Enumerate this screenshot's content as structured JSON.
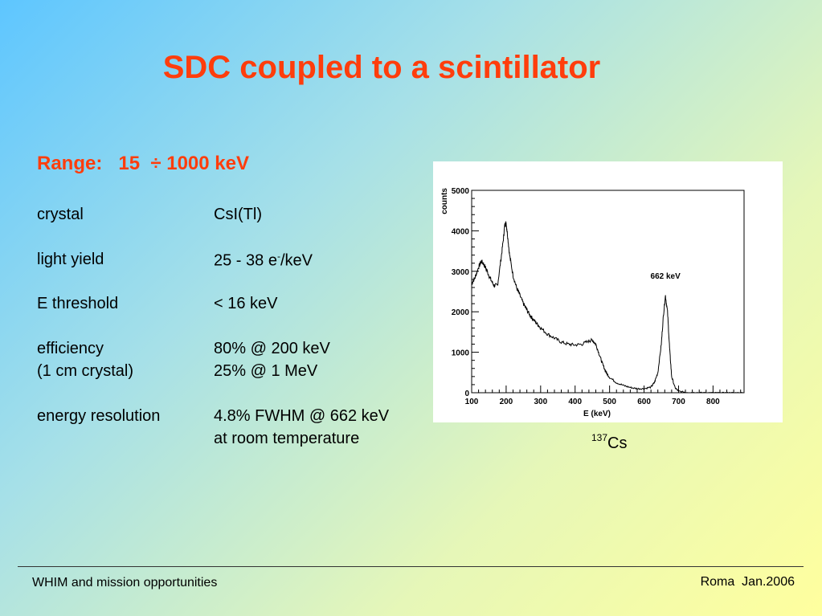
{
  "slide": {
    "title": "SDC coupled to a scintillator",
    "range": "Range:   15  ÷ 1000 keV",
    "specs": [
      {
        "label": "crystal",
        "value": "CsI(Tl)"
      },
      {
        "label": "light yield",
        "value_pre": "25 - 38 e",
        "value_sup": "-",
        "value_post": "/keV"
      },
      {
        "label": "E threshold",
        "value": "< 16 keV"
      },
      {
        "label": "efficiency",
        "value": "80% @ 200 keV"
      },
      {
        "label": "(1 cm crystal)",
        "value": "25% @ 1 MeV"
      },
      {
        "label": "energy resolution",
        "value": "4.8% FWHM @ 662 keV"
      },
      {
        "label": "",
        "value": "at room temperature"
      }
    ],
    "isotope_mass": "137",
    "isotope_symbol": "Cs"
  },
  "footer": {
    "left": "WHIM and mission opportunities",
    "right": "Roma  Jan.2006"
  },
  "chart_data": {
    "type": "line",
    "xlabel": "E (keV)",
    "ylabel": "counts",
    "xlim": [
      100,
      890
    ],
    "ylim": [
      0,
      5000
    ],
    "xticks": [
      100,
      200,
      300,
      400,
      500,
      600,
      700,
      800
    ],
    "yticks": [
      0,
      1000,
      2000,
      3000,
      4000,
      5000
    ],
    "annotation": {
      "text": "662 keV",
      "x": 662,
      "y": 2700
    },
    "series": [
      {
        "x": [
          100,
          110,
          120,
          128,
          135,
          145,
          155,
          165,
          175,
          185,
          192,
          196,
          200,
          204,
          210,
          220,
          230,
          240,
          250,
          260,
          270,
          280,
          290,
          300,
          320,
          340,
          360,
          380,
          400,
          420,
          440,
          450,
          460,
          470,
          480,
          490,
          500,
          520,
          540,
          560,
          580,
          600,
          620,
          630,
          640,
          650,
          656,
          662,
          668,
          674,
          680,
          690,
          700,
          720,
          740,
          760,
          780,
          800,
          820,
          840,
          860,
          890
        ],
        "y": [
          2700,
          2850,
          3100,
          3250,
          3180,
          3000,
          2800,
          2650,
          2650,
          3300,
          3800,
          4150,
          4200,
          3900,
          3400,
          2900,
          2600,
          2400,
          2200,
          2050,
          1900,
          1800,
          1700,
          1600,
          1450,
          1350,
          1250,
          1200,
          1180,
          1200,
          1280,
          1300,
          1200,
          950,
          700,
          500,
          380,
          250,
          180,
          130,
          100,
          100,
          140,
          250,
          500,
          1200,
          1900,
          2400,
          2000,
          1100,
          400,
          120,
          40,
          10,
          5,
          2,
          1,
          0,
          0,
          0,
          0,
          0
        ]
      }
    ]
  }
}
